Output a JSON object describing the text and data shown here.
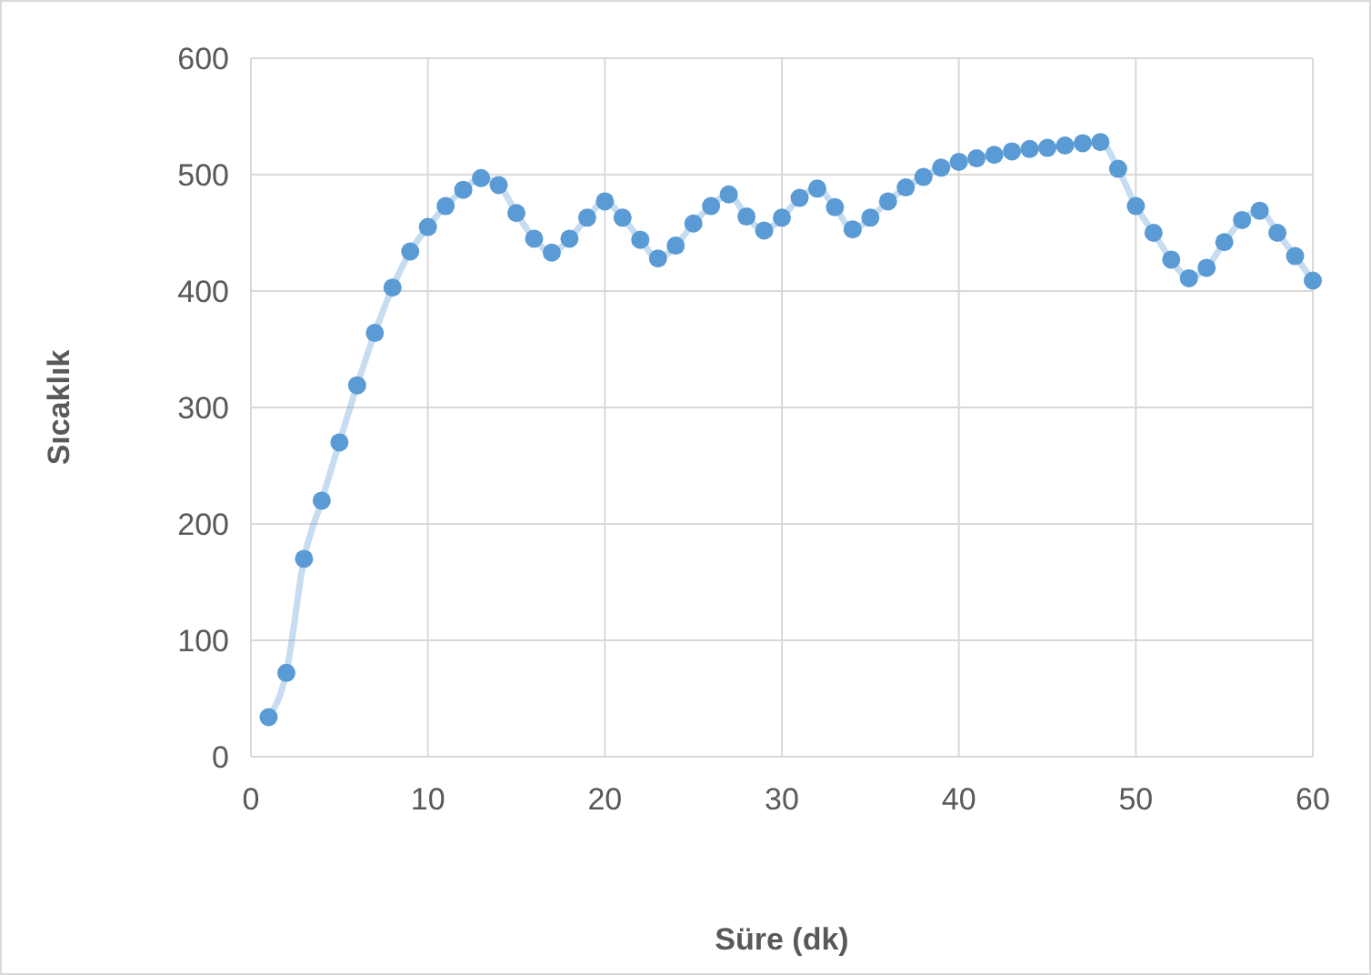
{
  "chart_data": {
    "type": "line",
    "xlabel": "Süre (dk)",
    "ylabel": "Sıcaklık",
    "x": [
      1,
      2,
      3,
      4,
      5,
      6,
      7,
      8,
      9,
      10,
      11,
      12,
      13,
      14,
      15,
      16,
      17,
      18,
      19,
      20,
      21,
      22,
      23,
      24,
      25,
      26,
      27,
      28,
      29,
      30,
      31,
      32,
      33,
      34,
      35,
      36,
      37,
      38,
      39,
      40,
      41,
      42,
      43,
      44,
      45,
      46,
      47,
      48,
      49,
      50,
      51,
      52,
      53,
      54,
      55,
      56,
      57,
      58,
      59,
      60
    ],
    "series": [
      {
        "color": "#5b9bd5",
        "values": [
          34,
          72,
          170,
          220,
          270,
          319,
          364,
          403,
          434,
          455,
          473,
          487,
          497,
          491,
          467,
          445,
          433,
          445,
          463,
          477,
          463,
          444,
          428,
          439,
          458,
          473,
          483,
          464,
          452,
          463,
          480,
          488,
          472,
          453,
          463,
          477,
          489,
          498,
          506,
          511,
          514,
          517,
          520,
          522,
          523,
          525,
          527,
          528,
          505,
          473,
          450,
          427,
          411,
          420,
          442,
          461,
          469,
          450,
          430,
          409
        ]
      }
    ],
    "xlim": [
      0,
      60
    ],
    "xticks": [
      0,
      10,
      20,
      30,
      40,
      50,
      60
    ],
    "ylim": [
      0,
      600
    ],
    "yticks": [
      0,
      100,
      200,
      300,
      400,
      500,
      600
    ],
    "grid": true,
    "marker": "circle",
    "line_style": "solid"
  }
}
